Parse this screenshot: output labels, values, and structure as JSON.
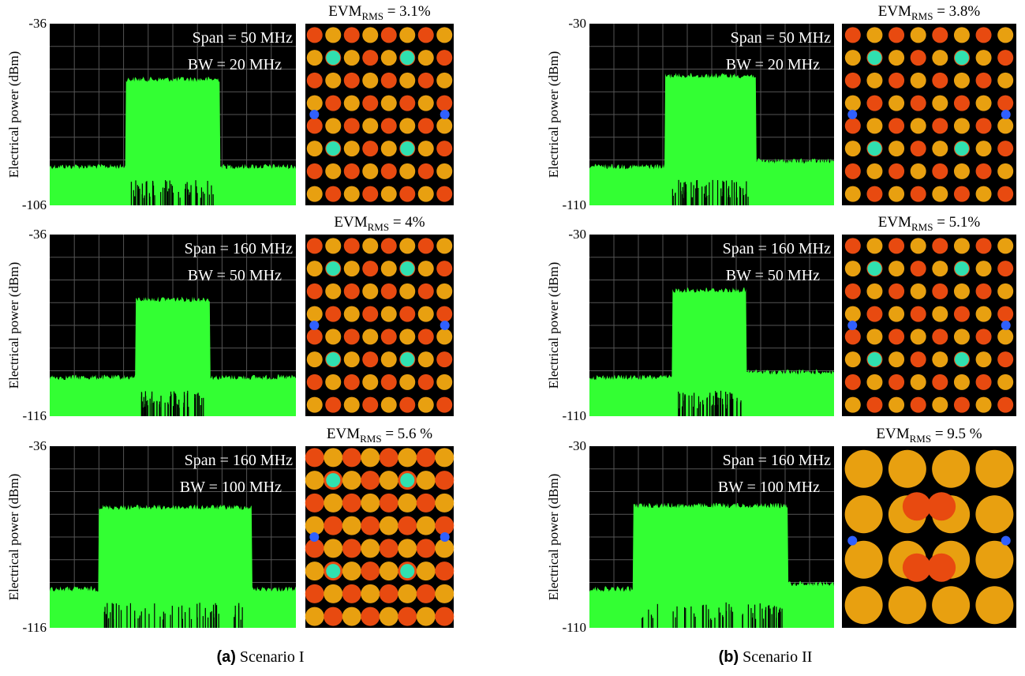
{
  "figure": {
    "panels": [
      {
        "letter": "(a)",
        "caption": "Scenario I",
        "rows": [
          {
            "y_label": "Electrical power (dBm)",
            "y_top": "-36",
            "y_bottom": "-106",
            "span": "Span = 50 MHz",
            "bw": "BW = 20 MHz",
            "evm": "EVM",
            "evm_sub": "RMS",
            "evm_value": " = 3.1%"
          },
          {
            "y_label": "Electrical power (dBm)",
            "y_top": "-36",
            "y_bottom": "-116",
            "span": "Span = 160 MHz",
            "bw": "BW = 50 MHz",
            "evm": "EVM",
            "evm_sub": "RMS",
            "evm_value": " = 4%"
          },
          {
            "y_label": "Electrical power (dBm)",
            "y_top": "-36",
            "y_bottom": "-116",
            "span": "Span = 160 MHz",
            "bw": "BW = 100 MHz",
            "evm": "EVM",
            "evm_sub": "RMS",
            "evm_value": " = 5.6 %"
          }
        ]
      },
      {
        "letter": "(b)",
        "caption": "Scenario II",
        "rows": [
          {
            "y_label": "Electrical power (dBm)",
            "y_top": "-30",
            "y_bottom": "-110",
            "span": "Span = 50 MHz",
            "bw": "BW = 20 MHz",
            "evm": "EVM",
            "evm_sub": "RMS",
            "evm_value": " = 3.8%"
          },
          {
            "y_label": "Electrical power (dBm)",
            "y_top": "-30",
            "y_bottom": "-110",
            "span": "Span = 160 MHz",
            "bw": "BW = 50 MHz",
            "evm": "EVM",
            "evm_sub": "RMS",
            "evm_value": " = 5.1%"
          },
          {
            "y_label": "Electrical power (dBm)",
            "y_top": "-30",
            "y_bottom": "-110",
            "span": "Span = 160 MHz",
            "bw": "BW = 100 MHz",
            "evm": "EVM",
            "evm_sub": "RMS",
            "evm_value": " = 9.5 %"
          }
        ]
      }
    ]
  }
}
